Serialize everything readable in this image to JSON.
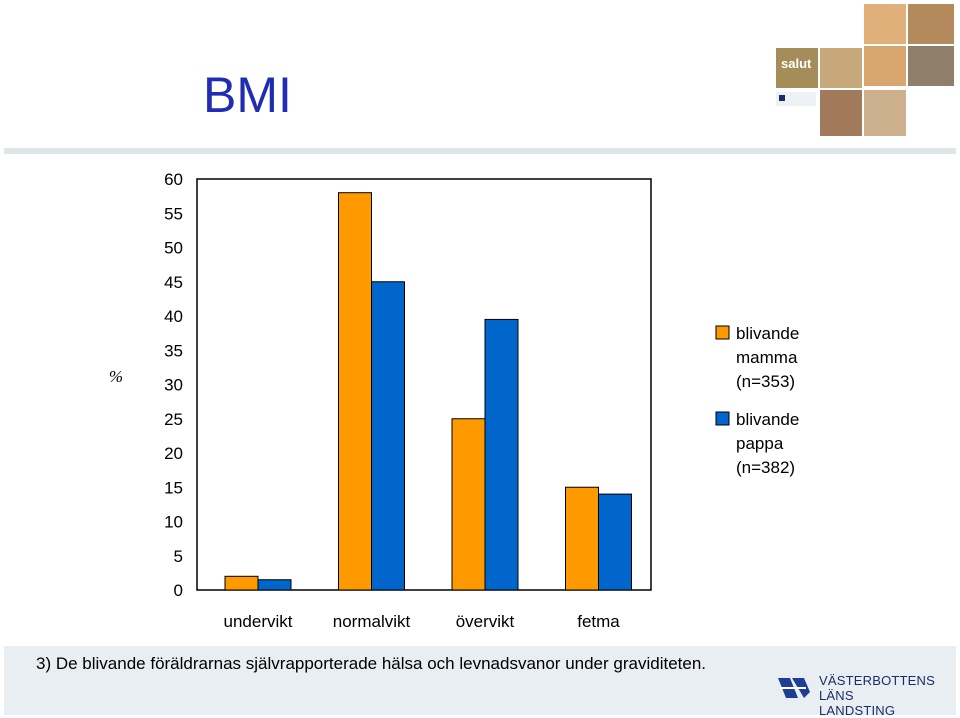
{
  "slide": {
    "title": "BMI",
    "footnote": "3) De blivande föräldrarnas självrapporterade hälsa och levnadsvanor under graviditeten.",
    "footer_org_line1": "VÄSTERBOTTENS",
    "footer_org_line2": "LÄNS LANDSTING",
    "logo_label": "salut"
  },
  "chart_data": {
    "type": "bar",
    "categories": [
      "undervikt",
      "normalvikt",
      "övervikt",
      "fetma"
    ],
    "series": [
      {
        "name": "blivande mamma (n=353)",
        "color": "#ff9900",
        "values": [
          2,
          58,
          25,
          15
        ]
      },
      {
        "name": "blivande pappa (n=382)",
        "color": "#0066cc",
        "values": [
          1.5,
          45,
          39.5,
          14
        ]
      }
    ],
    "ylabel": "%",
    "ylim": [
      0,
      60
    ],
    "yticks": [
      0,
      5,
      10,
      15,
      20,
      25,
      30,
      35,
      40,
      45,
      50,
      55,
      60
    ],
    "grid": false,
    "legend": "right",
    "legend_lines": [
      [
        "blivande",
        "mamma",
        "(n=353)"
      ],
      [
        "blivande",
        "pappa",
        "(n=382)"
      ]
    ]
  }
}
